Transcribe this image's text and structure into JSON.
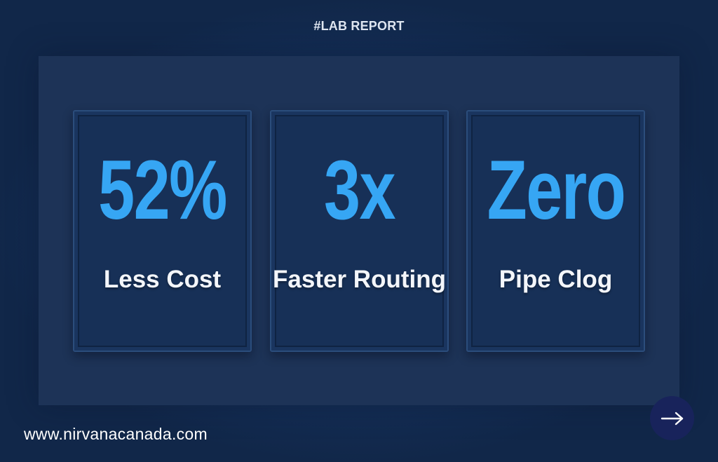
{
  "header": {
    "tag": "#LAB REPORT"
  },
  "stats": [
    {
      "value": "52%",
      "label": "Less Cost"
    },
    {
      "value": "3x",
      "label": "Faster Routing"
    },
    {
      "value": "Zero",
      "label": "Pipe Clog"
    }
  ],
  "footer": {
    "website": "www.nirvanacanada.com",
    "next_icon": "arrow-right-icon"
  },
  "colors": {
    "background": "#133058",
    "panel": "#1d3357",
    "card": "#173057",
    "accent": "#36a6f4",
    "label": "#f4f6fa",
    "button": "#18235b"
  }
}
